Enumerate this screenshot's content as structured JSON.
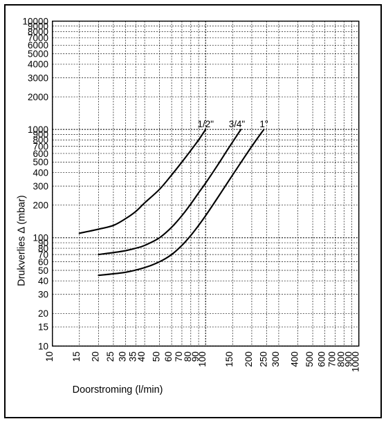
{
  "chart": {
    "type": "line",
    "background_color": "#ffffff",
    "border_color": "#000000",
    "grid_color": "#000000",
    "grid_dash": "2 2",
    "line_color": "#000000",
    "line_width": 2.2,
    "xlabel": "Doorstroming (l/min)",
    "ylabel": "Drukverlies Δ (mbar)",
    "label_fontsize": 15,
    "tick_fontsize": 14,
    "x_scale": "log",
    "y_scale": "log",
    "xlim": [
      10,
      1000
    ],
    "ylim": [
      10,
      10000
    ],
    "x_ticks": [
      10,
      15,
      20,
      25,
      30,
      35,
      40,
      50,
      60,
      70,
      80,
      90,
      100,
      150,
      200,
      250,
      300,
      400,
      500,
      600,
      700,
      800,
      900,
      1000
    ],
    "y_ticks": [
      10,
      15,
      20,
      30,
      40,
      50,
      60,
      70,
      80,
      90,
      100,
      200,
      300,
      400,
      500,
      600,
      700,
      800,
      900,
      1000,
      2000,
      3000,
      4000,
      5000,
      6000,
      7000,
      8000,
      9000,
      10000
    ],
    "x_bold_ticks": [
      10,
      100,
      1000
    ],
    "y_bold_ticks": [
      10,
      100,
      1000,
      10000
    ],
    "series": [
      {
        "name": "half-inch",
        "label": "1/2\"",
        "label_at": {
          "x": 100,
          "y": 1050
        },
        "points": [
          {
            "x": 15,
            "y": 110
          },
          {
            "x": 20,
            "y": 120
          },
          {
            "x": 25,
            "y": 130
          },
          {
            "x": 30,
            "y": 150
          },
          {
            "x": 35,
            "y": 175
          },
          {
            "x": 40,
            "y": 210
          },
          {
            "x": 50,
            "y": 280
          },
          {
            "x": 60,
            "y": 380
          },
          {
            "x": 70,
            "y": 500
          },
          {
            "x": 80,
            "y": 640
          },
          {
            "x": 90,
            "y": 800
          },
          {
            "x": 100,
            "y": 1000
          }
        ]
      },
      {
        "name": "three-quarter-inch",
        "label": "3/4\"",
        "label_at": {
          "x": 160,
          "y": 1050
        },
        "points": [
          {
            "x": 20,
            "y": 70
          },
          {
            "x": 25,
            "y": 73
          },
          {
            "x": 30,
            "y": 76
          },
          {
            "x": 35,
            "y": 80
          },
          {
            "x": 40,
            "y": 85
          },
          {
            "x": 50,
            "y": 100
          },
          {
            "x": 60,
            "y": 125
          },
          {
            "x": 70,
            "y": 160
          },
          {
            "x": 80,
            "y": 205
          },
          {
            "x": 90,
            "y": 260
          },
          {
            "x": 100,
            "y": 320
          },
          {
            "x": 120,
            "y": 470
          },
          {
            "x": 140,
            "y": 660
          },
          {
            "x": 160,
            "y": 880
          },
          {
            "x": 170,
            "y": 1000
          }
        ]
      },
      {
        "name": "one-inch",
        "label": "1\"",
        "label_at": {
          "x": 240,
          "y": 1050
        },
        "points": [
          {
            "x": 20,
            "y": 45
          },
          {
            "x": 30,
            "y": 48
          },
          {
            "x": 40,
            "y": 53
          },
          {
            "x": 50,
            "y": 60
          },
          {
            "x": 60,
            "y": 70
          },
          {
            "x": 70,
            "y": 85
          },
          {
            "x": 80,
            "y": 105
          },
          {
            "x": 90,
            "y": 130
          },
          {
            "x": 100,
            "y": 160
          },
          {
            "x": 120,
            "y": 235
          },
          {
            "x": 150,
            "y": 380
          },
          {
            "x": 180,
            "y": 560
          },
          {
            "x": 210,
            "y": 770
          },
          {
            "x": 240,
            "y": 1000
          }
        ]
      }
    ]
  }
}
